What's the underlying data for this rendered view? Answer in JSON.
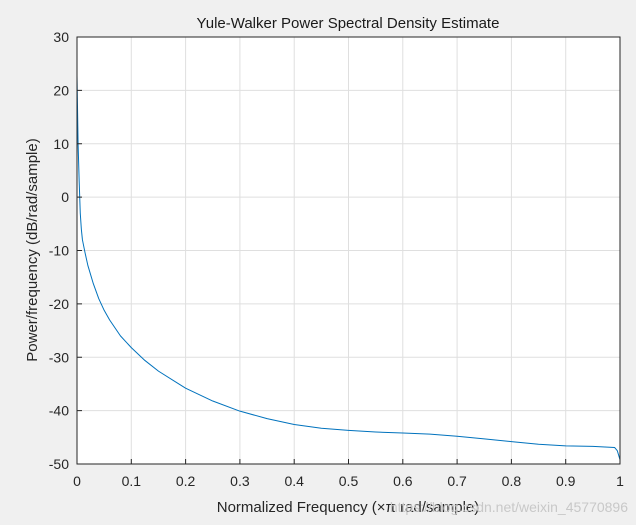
{
  "chart_data": {
    "type": "line",
    "title": "Yule-Walker Power Spectral Density Estimate",
    "xlabel": "Normalized Frequency  (×π rad/sample)",
    "ylabel": "Power/frequency (dB/rad/sample)",
    "xlim": [
      0,
      1
    ],
    "ylim": [
      -50,
      30
    ],
    "xticks": [
      "0",
      "0.1",
      "0.2",
      "0.3",
      "0.4",
      "0.5",
      "0.6",
      "0.7",
      "0.8",
      "0.9",
      "1"
    ],
    "yticks": [
      "30",
      "20",
      "10",
      "0",
      "-10",
      "-20",
      "-30",
      "-40",
      "-50"
    ],
    "grid": true,
    "colors": {
      "line": "#0072bd",
      "grid": "#dfdfdf",
      "axes_bg": "#ffffff",
      "figure_bg": "#f0f0f0"
    },
    "series": [
      {
        "x": [
          0,
          0.002,
          0.004,
          0.006,
          0.008,
          0.01,
          0.015,
          0.02,
          0.03,
          0.04,
          0.05,
          0.06,
          0.08,
          0.1,
          0.125,
          0.15,
          0.2,
          0.25,
          0.3,
          0.35,
          0.4,
          0.45,
          0.5,
          0.55,
          0.6,
          0.65,
          0.7,
          0.75,
          0.8,
          0.85,
          0.9,
          0.95,
          0.99,
          0.995,
          1.0
        ],
        "y": [
          22.8,
          10,
          3,
          -3,
          -6,
          -8,
          -10.5,
          -12.8,
          -16.2,
          -19,
          -21.2,
          -23,
          -26,
          -28.2,
          -30.6,
          -32.6,
          -35.8,
          -38.2,
          -40.1,
          -41.5,
          -42.6,
          -43.3,
          -43.7,
          -44,
          -44.2,
          -44.4,
          -44.8,
          -45.3,
          -45.8,
          -46.3,
          -46.6,
          -46.7,
          -46.9,
          -47.5,
          -49.2
        ]
      }
    ]
  },
  "watermark": "https://blog.csdn.net/weixin_45770896"
}
